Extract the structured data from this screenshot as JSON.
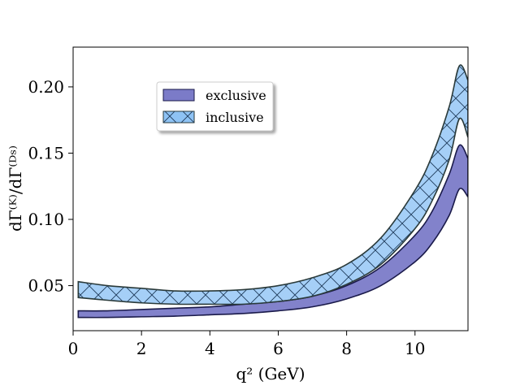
{
  "chart_data": {
    "type": "area",
    "xlabel": "q² (GeV)",
    "ylabel": "dΓ⁽ᴷ⁾/dΓ⁽ᴰˢ⁾",
    "xlim": [
      0,
      11.55
    ],
    "ylim": [
      0.016,
      0.23
    ],
    "xticks": [
      0,
      2,
      4,
      6,
      8,
      10
    ],
    "yticks": [
      0.05,
      0.1,
      0.15,
      0.2
    ],
    "xtick_labels": [
      "0",
      "2",
      "4",
      "6",
      "8",
      "10"
    ],
    "ytick_labels": [
      "0.05",
      "0.10",
      "0.15",
      "0.20"
    ],
    "grid": false,
    "legend_position": "upper-left",
    "series": [
      {
        "name": "exclusive",
        "color": "#7b7bc8",
        "edge_color": "#1a1a4a",
        "hatch": false,
        "x": [
          0.15,
          1.0,
          2.0,
          3.0,
          4.0,
          5.0,
          6.0,
          7.0,
          8.0,
          9.0,
          10.0,
          10.5,
          11.0,
          11.3,
          11.55
        ],
        "lower": [
          0.026,
          0.026,
          0.0265,
          0.027,
          0.028,
          0.029,
          0.031,
          0.034,
          0.04,
          0.05,
          0.068,
          0.082,
          0.103,
          0.123,
          0.117
        ],
        "upper": [
          0.031,
          0.031,
          0.032,
          0.033,
          0.034,
          0.036,
          0.038,
          0.042,
          0.05,
          0.064,
          0.088,
          0.106,
          0.134,
          0.156,
          0.146
        ]
      },
      {
        "name": "inclusive",
        "color": "#8ec3f5",
        "edge_color": "#2a3a3a",
        "hatch": true,
        "x": [
          0.15,
          1.0,
          2.0,
          3.0,
          4.0,
          5.0,
          6.0,
          7.0,
          8.0,
          9.0,
          10.0,
          10.5,
          11.0,
          11.3,
          11.55
        ],
        "lower": [
          0.041,
          0.039,
          0.037,
          0.036,
          0.036,
          0.036,
          0.038,
          0.042,
          0.051,
          0.066,
          0.093,
          0.114,
          0.145,
          0.176,
          0.162
        ],
        "upper": [
          0.053,
          0.05,
          0.048,
          0.046,
          0.046,
          0.047,
          0.05,
          0.056,
          0.066,
          0.086,
          0.122,
          0.148,
          0.185,
          0.216,
          0.205
        ]
      }
    ]
  }
}
